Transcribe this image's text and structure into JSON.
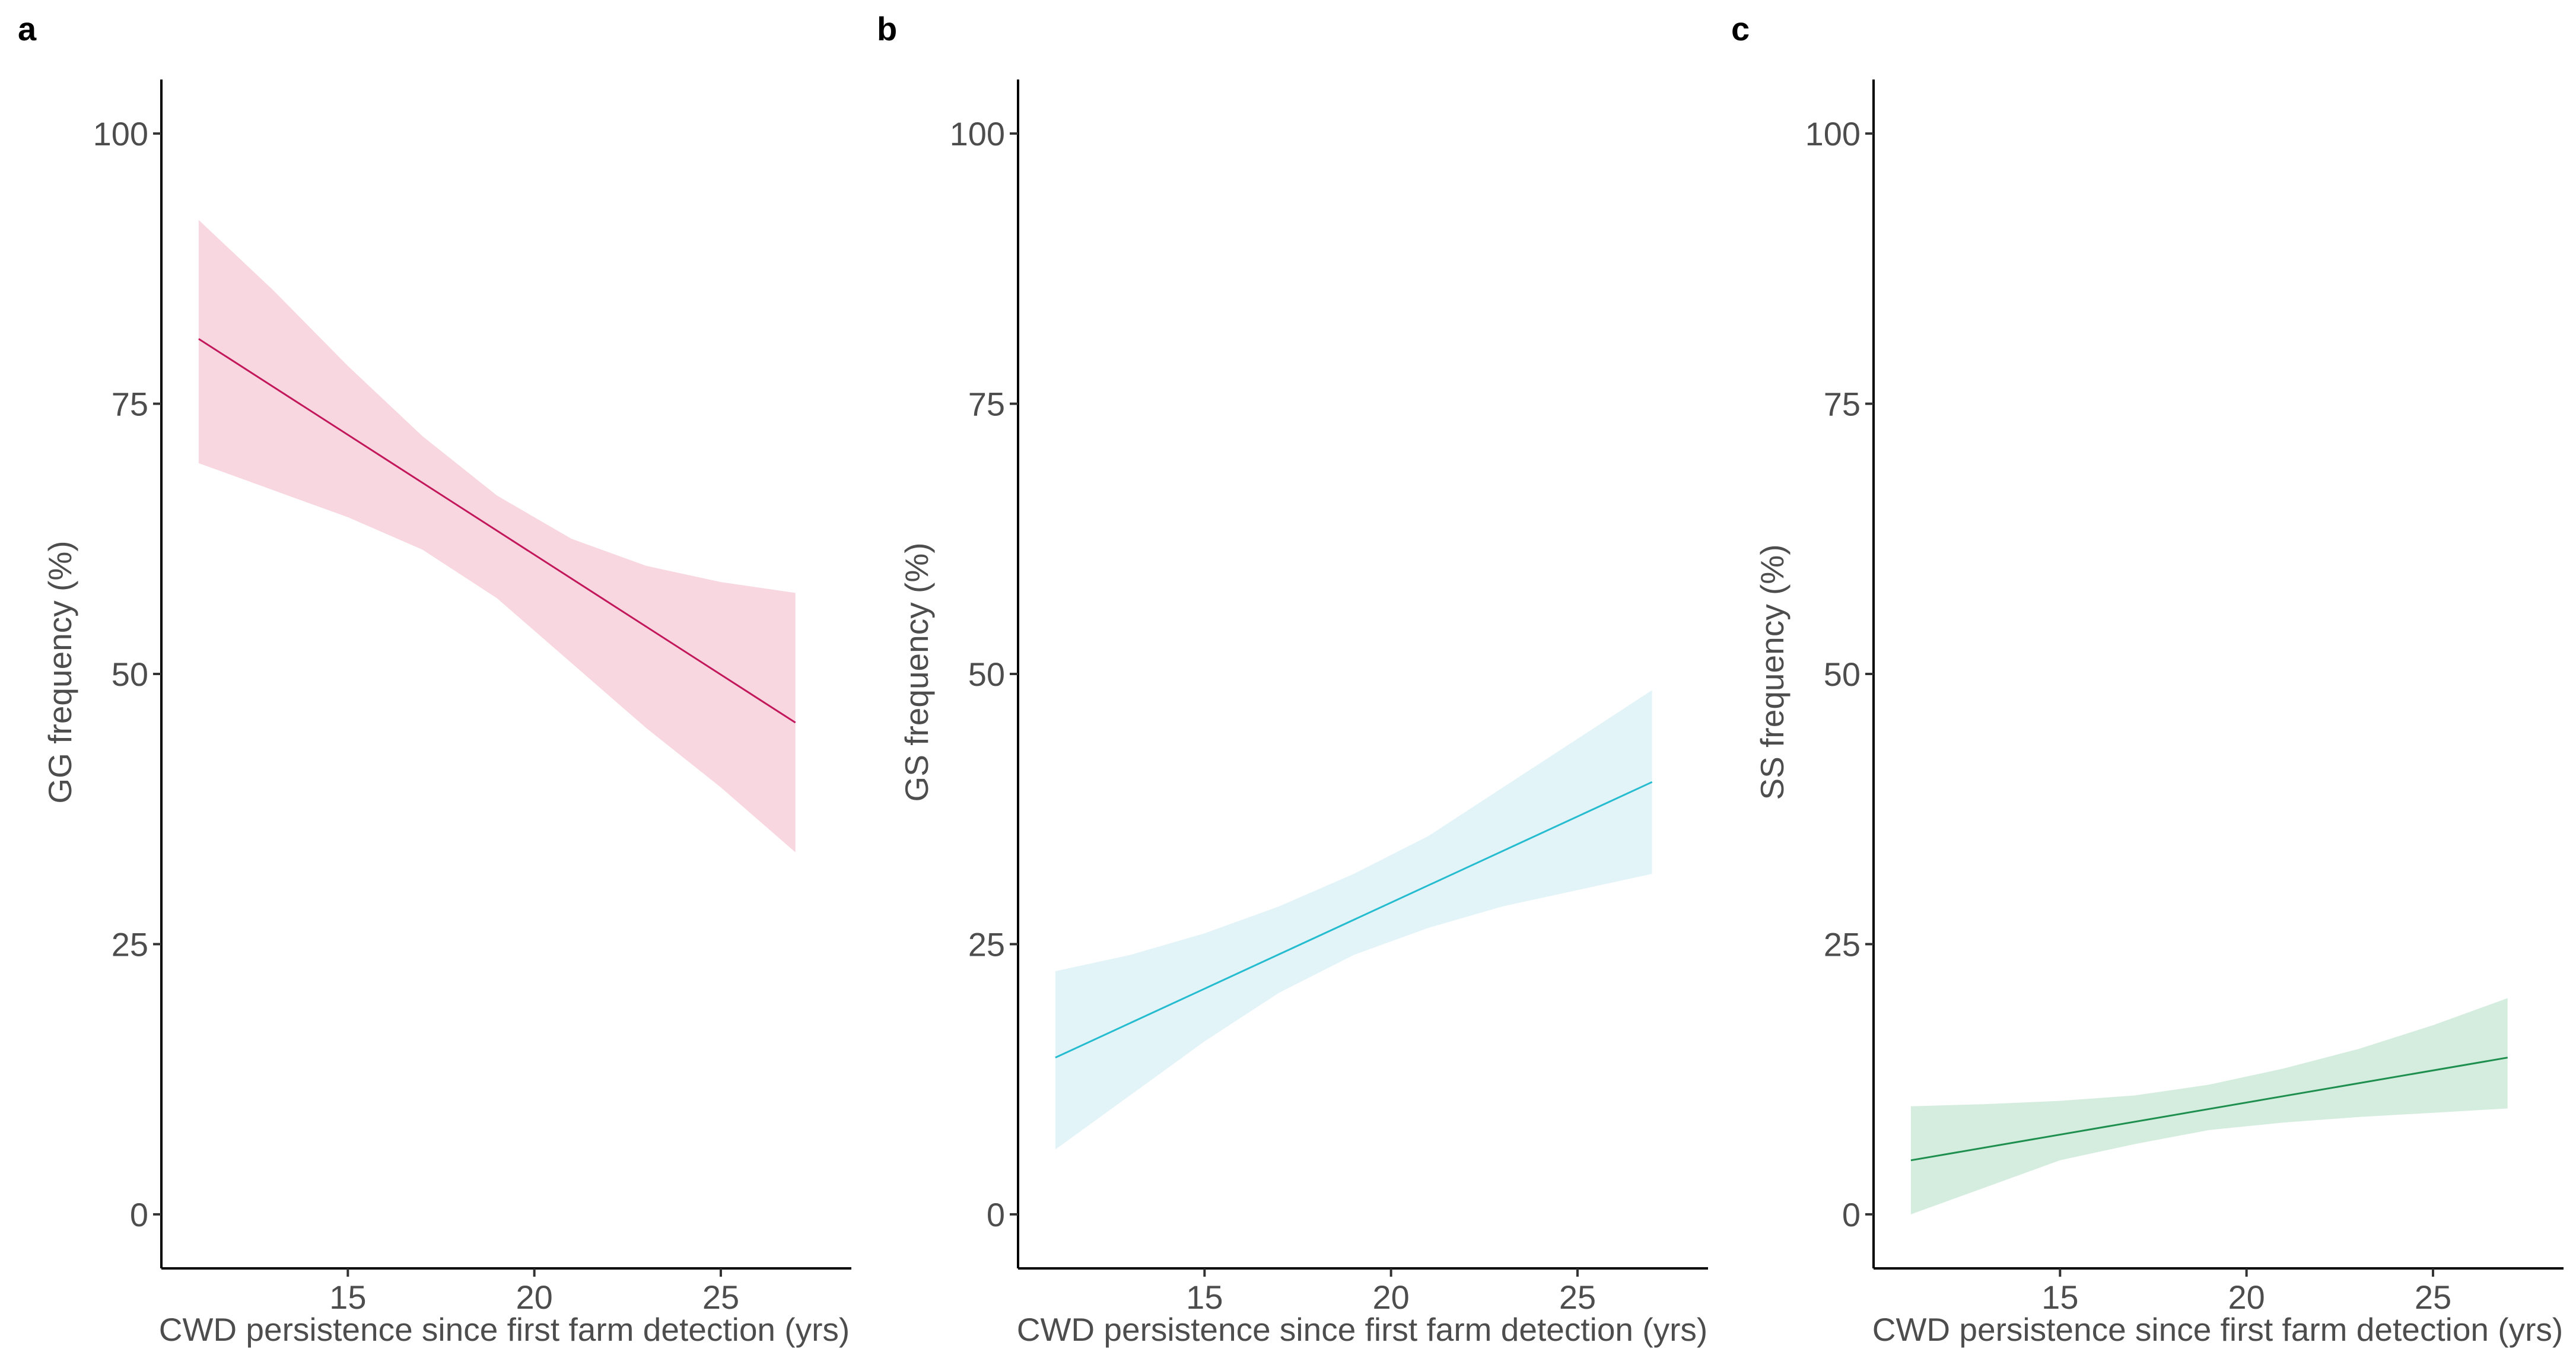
{
  "chart_data": [
    {
      "type": "line",
      "panel_label": "a",
      "title": "",
      "xlabel": "CWD persistence since first farm detection (yrs)",
      "ylabel": "GG frequency (%)",
      "xlim": [
        10,
        28.5
      ],
      "ylim": [
        -5,
        105
      ],
      "xticks": [
        15,
        20,
        25
      ],
      "yticks": [
        0,
        25,
        50,
        75,
        100
      ],
      "grid": false,
      "line_color": "#C2185B",
      "band_color": "#F8D7E0",
      "series": [
        {
          "name": "fit",
          "x": [
            11,
            27
          ],
          "y": [
            81,
            45.5
          ]
        }
      ],
      "band": {
        "x": [
          11,
          13,
          15,
          17,
          19,
          21,
          23,
          25,
          27
        ],
        "lower": [
          69.5,
          67,
          64.5,
          61.5,
          57,
          51,
          45,
          39.5,
          33.5
        ],
        "upper": [
          92,
          85.5,
          78.5,
          72,
          66.5,
          62.5,
          60,
          58.5,
          57.5
        ]
      }
    },
    {
      "type": "line",
      "panel_label": "b",
      "title": "",
      "xlabel": "CWD persistence since first farm detection (yrs)",
      "ylabel": "GS frequency (%)",
      "xlim": [
        10,
        28.5
      ],
      "ylim": [
        -5,
        105
      ],
      "xticks": [
        15,
        20,
        25
      ],
      "yticks": [
        0,
        25,
        50,
        75,
        100
      ],
      "grid": false,
      "line_color": "#26BCD0",
      "band_color": "#E3F4F8",
      "series": [
        {
          "name": "fit",
          "x": [
            11,
            27
          ],
          "y": [
            14.5,
            40
          ]
        }
      ],
      "band": {
        "x": [
          11,
          13,
          15,
          17,
          19,
          21,
          23,
          25,
          27
        ],
        "lower": [
          6,
          11,
          16,
          20.5,
          24,
          26.5,
          28.5,
          30,
          31.5
        ],
        "upper": [
          22.5,
          24,
          26,
          28.5,
          31.5,
          35,
          39.5,
          44,
          48.5
        ]
      }
    },
    {
      "type": "line",
      "panel_label": "c",
      "title": "",
      "xlabel": "CWD persistence since first farm detection (yrs)",
      "ylabel": "SS frequency (%)",
      "xlim": [
        10,
        28.5
      ],
      "ylim": [
        -5,
        105
      ],
      "xticks": [
        15,
        20,
        25
      ],
      "yticks": [
        0,
        25,
        50,
        75,
        100
      ],
      "grid": false,
      "line_color": "#1E8F4E",
      "band_color": "#D4EDDF",
      "series": [
        {
          "name": "fit",
          "x": [
            11,
            27
          ],
          "y": [
            5,
            14.5
          ]
        }
      ],
      "band": {
        "x": [
          11,
          13,
          15,
          17,
          19,
          21,
          23,
          25,
          27
        ],
        "lower": [
          0,
          2.5,
          5,
          6.5,
          7.8,
          8.5,
          9,
          9.4,
          9.8
        ],
        "upper": [
          10,
          10.2,
          10.5,
          11,
          12,
          13.5,
          15.3,
          17.5,
          20
        ]
      }
    }
  ]
}
